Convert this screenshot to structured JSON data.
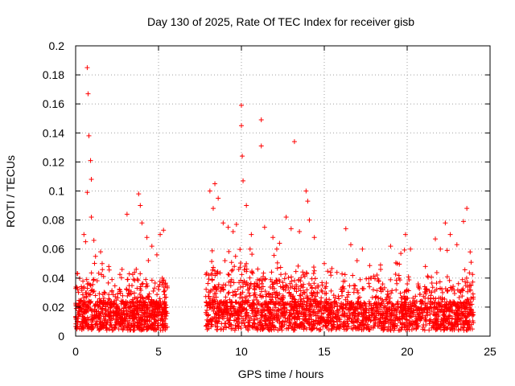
{
  "chart_data": {
    "type": "scatter",
    "title": "Day 130 of 2025, Rate Of TEC Index for receiver gisb",
    "xlabel": "GPS time / hours",
    "ylabel": "ROTI / TECUs",
    "xlim": [
      0,
      25
    ],
    "ylim": [
      0,
      0.2
    ],
    "x_ticks": [
      0,
      5,
      10,
      15,
      20,
      25
    ],
    "y_ticks": [
      0,
      0.02,
      0.04,
      0.06,
      0.08,
      0.1,
      0.12,
      0.14,
      0.16,
      0.18,
      0.2
    ],
    "x_tick_labels": [
      "0",
      "5",
      "10",
      "15",
      "20",
      "25"
    ],
    "y_tick_labels": [
      "0",
      "0.02",
      "0.04",
      "0.06",
      "0.08",
      "0.1",
      "0.12",
      "0.14",
      "0.16",
      "0.18",
      "0.2"
    ],
    "grid": true,
    "marker": "+",
    "color": "#ff0000",
    "series": [
      {
        "points": [
          [
            0.7,
            0.185
          ],
          [
            0.75,
            0.167
          ],
          [
            0.8,
            0.138
          ],
          [
            0.9,
            0.121
          ],
          [
            0.95,
            0.108
          ],
          [
            0.7,
            0.099
          ],
          [
            0.95,
            0.082
          ],
          [
            0.5,
            0.07
          ],
          [
            0.6,
            0.065
          ],
          [
            1.1,
            0.066
          ],
          [
            1.2,
            0.055
          ],
          [
            1.6,
            0.05
          ],
          [
            2.0,
            0.048
          ],
          [
            2.8,
            0.046
          ],
          [
            3.1,
            0.084
          ],
          [
            3.8,
            0.098
          ],
          [
            3.9,
            0.09
          ],
          [
            4.0,
            0.078
          ],
          [
            4.3,
            0.068
          ],
          [
            4.6,
            0.062
          ],
          [
            5.1,
            0.07
          ],
          [
            5.3,
            0.073
          ],
          [
            4.9,
            0.056
          ],
          [
            8.1,
            0.1
          ],
          [
            8.4,
            0.105
          ],
          [
            8.6,
            0.095
          ],
          [
            8.3,
            0.088
          ],
          [
            8.9,
            0.078
          ],
          [
            9.2,
            0.075
          ],
          [
            9.5,
            0.072
          ],
          [
            9.7,
            0.077
          ],
          [
            10.0,
            0.159
          ],
          [
            10.0,
            0.145
          ],
          [
            10.05,
            0.124
          ],
          [
            10.1,
            0.107
          ],
          [
            10.3,
            0.09
          ],
          [
            10.6,
            0.07
          ],
          [
            11.2,
            0.149
          ],
          [
            11.2,
            0.131
          ],
          [
            11.4,
            0.075
          ],
          [
            11.9,
            0.068
          ],
          [
            12.3,
            0.064
          ],
          [
            12.7,
            0.082
          ],
          [
            13.0,
            0.074
          ],
          [
            13.2,
            0.134
          ],
          [
            13.5,
            0.072
          ],
          [
            13.9,
            0.1
          ],
          [
            14.0,
            0.093
          ],
          [
            14.1,
            0.08
          ],
          [
            14.4,
            0.068
          ],
          [
            15.0,
            0.05
          ],
          [
            15.4,
            0.042
          ],
          [
            16.3,
            0.074
          ],
          [
            16.6,
            0.063
          ],
          [
            17.3,
            0.06
          ],
          [
            17.8,
            0.04
          ],
          [
            18.4,
            0.046
          ],
          [
            19.0,
            0.062
          ],
          [
            19.4,
            0.05
          ],
          [
            19.9,
            0.07
          ],
          [
            20.2,
            0.06
          ],
          [
            21.1,
            0.048
          ],
          [
            21.7,
            0.067
          ],
          [
            22.0,
            0.06
          ],
          [
            22.3,
            0.078
          ],
          [
            22.6,
            0.07
          ],
          [
            23.0,
            0.063
          ],
          [
            23.4,
            0.079
          ],
          [
            23.6,
            0.088
          ],
          [
            23.8,
            0.058
          ]
        ]
      }
    ]
  }
}
